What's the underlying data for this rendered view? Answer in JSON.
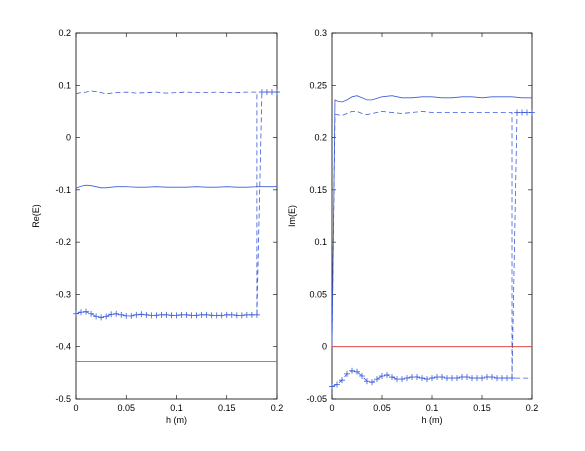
{
  "chart_data": [
    {
      "type": "line",
      "title": "",
      "xlabel": "h (m)",
      "ylabel": "Re(E)",
      "xlim": [
        0,
        0.2
      ],
      "ylim": [
        -0.5,
        0.2
      ],
      "xticks": [
        0,
        0.05,
        0.1,
        0.15,
        0.2
      ],
      "xtick_labels": [
        "0",
        "0.05",
        "0.1",
        "0.15",
        "0.2"
      ],
      "yticks": [
        -0.5,
        -0.4,
        -0.3,
        -0.2,
        -0.1,
        0,
        0.1,
        0.2
      ],
      "ytick_labels": [
        "-0.5",
        "-0.4",
        "-0.3",
        "-0.2",
        "-0.1",
        "0",
        "0.1",
        "0.2"
      ],
      "grid": false,
      "series": [
        {
          "style": "solid",
          "color": "#3b5bdb",
          "marker": "none",
          "x": [
            0,
            0.005,
            0.01,
            0.015,
            0.02,
            0.025,
            0.03,
            0.035,
            0.04,
            0.05,
            0.06,
            0.07,
            0.08,
            0.09,
            0.1,
            0.11,
            0.12,
            0.13,
            0.14,
            0.15,
            0.16,
            0.17,
            0.18,
            0.19,
            0.2
          ],
          "y": [
            -0.097,
            -0.093,
            -0.091,
            -0.092,
            -0.094,
            -0.096,
            -0.096,
            -0.095,
            -0.094,
            -0.094,
            -0.095,
            -0.095,
            -0.094,
            -0.095,
            -0.095,
            -0.095,
            -0.094,
            -0.095,
            -0.095,
            -0.094,
            -0.095,
            -0.095,
            -0.094,
            -0.094,
            -0.094
          ]
        },
        {
          "style": "dashed",
          "color": "#3b5bdb",
          "marker": "none",
          "x": [
            0,
            0.005,
            0.01,
            0.015,
            0.02,
            0.025,
            0.03,
            0.04,
            0.05,
            0.06,
            0.07,
            0.08,
            0.09,
            0.1,
            0.11,
            0.12,
            0.13,
            0.14,
            0.15,
            0.16,
            0.17,
            0.18,
            0.18,
            0.18
          ],
          "y": [
            0.084,
            0.086,
            0.087,
            0.089,
            0.088,
            0.086,
            0.084,
            0.086,
            0.087,
            0.085,
            0.086,
            0.087,
            0.085,
            0.086,
            0.087,
            0.086,
            0.086,
            0.087,
            0.086,
            0.086,
            0.087,
            0.087,
            -0.34,
            -0.34
          ]
        },
        {
          "style": "dash-plus",
          "color": "#3b5bdb",
          "marker": "plus",
          "x": [
            0,
            0.005,
            0.01,
            0.015,
            0.02,
            0.025,
            0.03,
            0.035,
            0.04,
            0.045,
            0.05,
            0.055,
            0.06,
            0.065,
            0.07,
            0.075,
            0.08,
            0.085,
            0.09,
            0.095,
            0.1,
            0.105,
            0.11,
            0.115,
            0.12,
            0.125,
            0.13,
            0.135,
            0.14,
            0.145,
            0.15,
            0.155,
            0.16,
            0.165,
            0.17,
            0.175,
            0.18,
            0.185,
            0.19,
            0.195,
            0.2
          ],
          "y": [
            -0.337,
            -0.334,
            -0.333,
            -0.337,
            -0.342,
            -0.344,
            -0.342,
            -0.338,
            -0.337,
            -0.339,
            -0.341,
            -0.341,
            -0.339,
            -0.338,
            -0.339,
            -0.34,
            -0.34,
            -0.339,
            -0.339,
            -0.34,
            -0.34,
            -0.339,
            -0.339,
            -0.34,
            -0.34,
            -0.339,
            -0.339,
            -0.34,
            -0.34,
            -0.34,
            -0.339,
            -0.339,
            -0.34,
            -0.34,
            -0.339,
            -0.339,
            -0.339,
            0.087,
            0.087,
            0.087,
            0.087
          ],
          "jump_at": 36
        },
        {
          "style": "solid",
          "color": "#e03131",
          "marker": "none",
          "x": [
            0,
            0.2
          ],
          "y": [
            -0.428,
            -0.428
          ]
        }
      ]
    },
    {
      "type": "line",
      "title": "",
      "xlabel": "h (m)",
      "ylabel": "Im(E)",
      "xlim": [
        0,
        0.2
      ],
      "ylim": [
        -0.05,
        0.3
      ],
      "xticks": [
        0,
        0.05,
        0.1,
        0.15,
        0.2
      ],
      "xtick_labels": [
        "0",
        "0.05",
        "0.1",
        "0.15",
        "0.2"
      ],
      "yticks": [
        -0.05,
        0,
        0.05,
        0.1,
        0.15,
        0.2,
        0.25,
        0.3
      ],
      "ytick_labels": [
        "-0.05",
        "0",
        "0.05",
        "0.1",
        "0.15",
        "0.2",
        "0.25",
        "0.3"
      ],
      "grid": false,
      "series": [
        {
          "style": "solid",
          "color": "#3b5bdb",
          "marker": "none",
          "x": [
            0,
            0.003,
            0.005,
            0.01,
            0.015,
            0.02,
            0.025,
            0.03,
            0.035,
            0.04,
            0.05,
            0.06,
            0.07,
            0.08,
            0.09,
            0.1,
            0.11,
            0.12,
            0.13,
            0.14,
            0.15,
            0.16,
            0.17,
            0.18,
            0.19,
            0.2
          ],
          "y": [
            0,
            0.236,
            0.235,
            0.234,
            0.236,
            0.239,
            0.24,
            0.238,
            0.236,
            0.236,
            0.239,
            0.24,
            0.238,
            0.238,
            0.239,
            0.239,
            0.238,
            0.238,
            0.239,
            0.239,
            0.238,
            0.239,
            0.239,
            0.239,
            0.238,
            0.238
          ]
        },
        {
          "style": "dashed",
          "color": "#3b5bdb",
          "marker": "none",
          "x": [
            0,
            0.003,
            0.005,
            0.01,
            0.015,
            0.02,
            0.025,
            0.03,
            0.035,
            0.04,
            0.05,
            0.06,
            0.07,
            0.08,
            0.09,
            0.1,
            0.11,
            0.12,
            0.13,
            0.14,
            0.15,
            0.16,
            0.17,
            0.18,
            0.18,
            0.2
          ],
          "y": [
            0,
            0.222,
            0.222,
            0.221,
            0.223,
            0.225,
            0.225,
            0.223,
            0.222,
            0.223,
            0.225,
            0.224,
            0.223,
            0.224,
            0.225,
            0.224,
            0.224,
            0.224,
            0.224,
            0.224,
            0.224,
            0.224,
            0.224,
            0.224,
            -0.03,
            -0.03
          ]
        },
        {
          "style": "dash-plus",
          "color": "#3b5bdb",
          "marker": "plus",
          "x": [
            0,
            0.005,
            0.01,
            0.015,
            0.02,
            0.025,
            0.03,
            0.035,
            0.04,
            0.045,
            0.05,
            0.055,
            0.06,
            0.065,
            0.07,
            0.075,
            0.08,
            0.085,
            0.09,
            0.095,
            0.1,
            0.105,
            0.11,
            0.115,
            0.12,
            0.125,
            0.13,
            0.135,
            0.14,
            0.145,
            0.15,
            0.155,
            0.16,
            0.165,
            0.17,
            0.175,
            0.18,
            0.185,
            0.19,
            0.195,
            0.2
          ],
          "y": [
            -0.038,
            -0.036,
            -0.032,
            -0.026,
            -0.023,
            -0.024,
            -0.028,
            -0.033,
            -0.034,
            -0.031,
            -0.028,
            -0.027,
            -0.029,
            -0.031,
            -0.031,
            -0.03,
            -0.029,
            -0.029,
            -0.03,
            -0.031,
            -0.03,
            -0.029,
            -0.029,
            -0.03,
            -0.03,
            -0.03,
            -0.029,
            -0.029,
            -0.03,
            -0.03,
            -0.03,
            -0.029,
            -0.029,
            -0.03,
            -0.03,
            -0.03,
            -0.03,
            0.224,
            0.224,
            0.224,
            0.224
          ],
          "jump_at": 36
        },
        {
          "style": "solid",
          "color": "#e03131",
          "marker": "none",
          "x": [
            0,
            0.2
          ],
          "y": [
            0,
            0
          ]
        }
      ]
    }
  ]
}
